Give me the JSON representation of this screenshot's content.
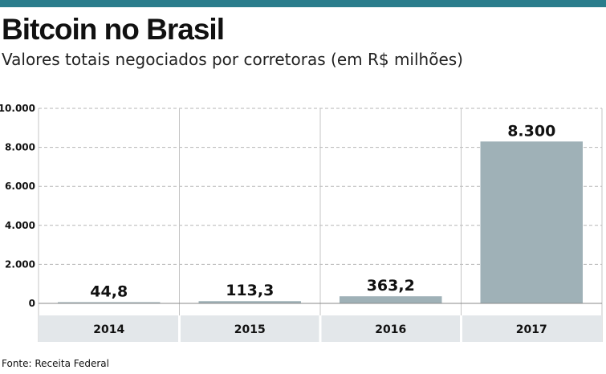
{
  "header": {
    "title": "Bitcoin no Brasil",
    "subtitle": "Valores totais negociados por corretoras (em R$ milhões)"
  },
  "footer": {
    "source": "Fonte: Receita Federal"
  },
  "colors": {
    "bar": "#9fb1b7",
    "accent": "#2a7d8c",
    "category_band": "#e3e7ea",
    "grid": "#b5b5b5"
  },
  "chart_data": {
    "type": "bar",
    "categories": [
      "2014",
      "2015",
      "2016",
      "2017"
    ],
    "values": [
      44.8,
      113.3,
      363.2,
      8300
    ],
    "value_labels": [
      "44,8",
      "113,3",
      "363,2",
      "8.300"
    ],
    "y_ticks": [
      0,
      2000,
      4000,
      6000,
      8000,
      10000
    ],
    "y_tick_labels": [
      "0",
      "2.000",
      "4.000",
      "6.000",
      "8.000",
      "10.000"
    ],
    "ylim": [
      0,
      10000
    ],
    "grid": true
  }
}
